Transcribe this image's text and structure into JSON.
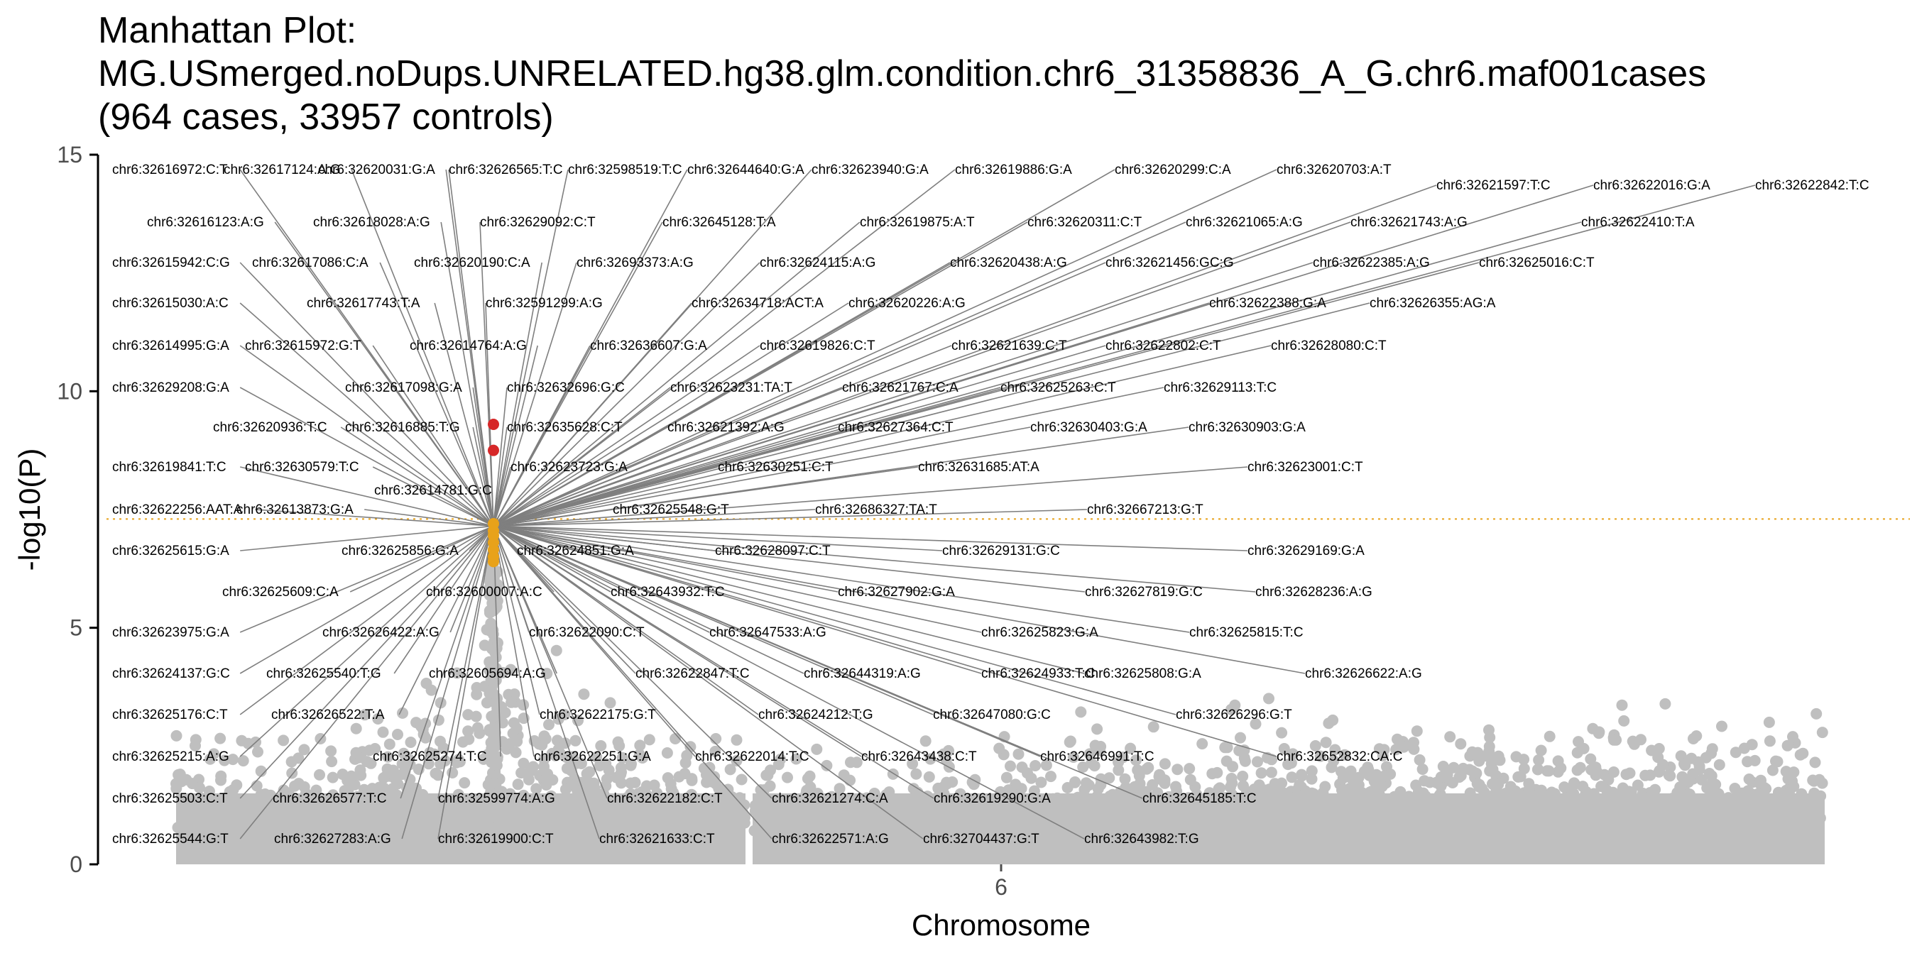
{
  "chart_data": {
    "type": "scatter",
    "title_lines": [
      "Manhattan Plot:",
      "MG.USmerged.noDups.UNRELATED.hg38.glm.condition.chr6_31358836_A_G.chr6.maf001cases",
      "(964 cases, 33957 controls)"
    ],
    "xlabel": "Chromosome",
    "ylabel": "-log10(P)",
    "x_ticks": [
      "6"
    ],
    "y_ticks": [
      0,
      5,
      10,
      15
    ],
    "ylim": [
      0,
      15
    ],
    "significance_threshold": 7.3,
    "grid": false,
    "colors": {
      "background": "#bfbfbf",
      "suggestive": "#e8a21a",
      "significant": "#d62728",
      "threshold_line": "#e8a21a",
      "leader": "#7f7f7f"
    },
    "highlight_points": [
      {
        "label": "top-1",
        "y": 9.3,
        "category": "significant"
      },
      {
        "label": "top-2",
        "y": 8.75,
        "category": "significant"
      },
      {
        "label": "cluster",
        "y": 7.2,
        "category": "suggestive"
      },
      {
        "label": "cluster",
        "y": 7.05,
        "category": "suggestive"
      },
      {
        "label": "cluster",
        "y": 6.95,
        "category": "suggestive"
      },
      {
        "label": "cluster",
        "y": 6.8,
        "category": "suggestive"
      },
      {
        "label": "cluster",
        "y": 6.65,
        "category": "suggestive"
      },
      {
        "label": "cluster",
        "y": 6.5,
        "category": "suggestive"
      },
      {
        "label": "cluster",
        "y": 6.4,
        "category": "suggestive"
      }
    ],
    "labels": [
      [
        "chr6:32616972:C:T",
        0
      ],
      [
        "chr6:32617124:A:G",
        0
      ],
      [
        "chr6:32620031:G:A",
        0
      ],
      [
        "chr6:32626565:T:C",
        0
      ],
      [
        "chr6:32598519:T:C",
        0
      ],
      [
        "chr6:32644640:G:A",
        0
      ],
      [
        "chr6:32623940:G:A",
        0
      ],
      [
        "chr6:32619886:G:A",
        0
      ],
      [
        "chr6:32620299:C:A",
        0
      ],
      [
        "chr6:32620703:A:T",
        0
      ],
      [
        "chr6:32621597:T:C",
        1
      ],
      [
        "chr6:32622016:G:A",
        1
      ],
      [
        "chr6:32622842:T:C",
        1
      ],
      [
        "chr6:32616123:A:G",
        2
      ],
      [
        "chr6:32618028:A:G",
        2
      ],
      [
        "chr6:32629092:C:T",
        2
      ],
      [
        "chr6:32645128:T:A",
        2
      ],
      [
        "chr6:32619875:A:T",
        2
      ],
      [
        "chr6:32620311:C:T",
        2
      ],
      [
        "chr6:32621065:A:G",
        2
      ],
      [
        "chr6:32621743:A:G",
        2
      ],
      [
        "chr6:32622410:T:A",
        2
      ],
      [
        "chr6:32615942:C:G",
        3
      ],
      [
        "chr6:32617086:C:A",
        3
      ],
      [
        "chr6:32620190:C:A",
        3
      ],
      [
        "chr6:32693373:A:G",
        3
      ],
      [
        "chr6:32624115:A:G",
        3
      ],
      [
        "chr6:32620438:A:G",
        3
      ],
      [
        "chr6:32621456:GC:G",
        3
      ],
      [
        "chr6:32622385:A:G",
        3
      ],
      [
        "chr6:32625016:C:T",
        3
      ],
      [
        "chr6:32615030:A:C",
        4
      ],
      [
        "chr6:32617743:T:A",
        4
      ],
      [
        "chr6:32591299:A:G",
        4
      ],
      [
        "chr6:32634718:ACT:A",
        4
      ],
      [
        "chr6:32620226:A:G",
        4
      ],
      [
        "chr6:32622388:G:A",
        4
      ],
      [
        "chr6:32626355:AG:A",
        4
      ],
      [
        "chr6:32614995:G:A",
        5
      ],
      [
        "chr6:32615972:G:T",
        5
      ],
      [
        "chr6:32614764:A:G",
        5
      ],
      [
        "chr6:32636607:G:A",
        5
      ],
      [
        "chr6:32619826:C:T",
        5
      ],
      [
        "chr6:32621639:C:T",
        5
      ],
      [
        "chr6:32622802:C:T",
        5
      ],
      [
        "chr6:32628080:C:T",
        5
      ],
      [
        "chr6:32629208:G:A",
        6
      ],
      [
        "chr6:32617098:G:A",
        6
      ],
      [
        "chr6:32632696:G:C",
        6
      ],
      [
        "chr6:32623231:TA:T",
        6
      ],
      [
        "chr6:32621767:C:A",
        6
      ],
      [
        "chr6:32625263:C:T",
        6
      ],
      [
        "chr6:32629113:T:C",
        6
      ],
      [
        "chr6:32620936:T:C",
        7
      ],
      [
        "chr6:32616885:T:G",
        7
      ],
      [
        "chr6:32635628:C:T",
        7
      ],
      [
        "chr6:32621392:A:G",
        7
      ],
      [
        "chr6:32627364:C:T",
        7
      ],
      [
        "chr6:32630403:G:A",
        7
      ],
      [
        "chr6:32630903:G:A",
        7
      ],
      [
        "chr6:32619841:T:C",
        8
      ],
      [
        "chr6:32630579:T:C",
        8
      ],
      [
        "chr6:32623723:G:A",
        8
      ],
      [
        "chr6:32630251:C:T",
        8
      ],
      [
        "chr6:32631685:AT:A",
        8
      ],
      [
        "chr6:32623001:C:T",
        8
      ],
      [
        "chr6:32614781:G:C",
        9
      ],
      [
        "chr6:32622256:AAT:A",
        10
      ],
      [
        "chr6:32613873:G:A",
        10
      ],
      [
        "chr6:32625548:G:T",
        10
      ],
      [
        "chr6:32686327:TA:T",
        10
      ],
      [
        "chr6:32667213:G:T",
        10
      ],
      [
        "chr6:32625615:G:A",
        11
      ],
      [
        "chr6:32625856:G:A",
        11
      ],
      [
        "chr6:32624851:G:A",
        11
      ],
      [
        "chr6:32628097:C:T",
        11
      ],
      [
        "chr6:32629131:G:C",
        11
      ],
      [
        "chr6:32629169:G:A",
        11
      ],
      [
        "chr6:32625609:C:A",
        12
      ],
      [
        "chr6:32600007:A:C",
        12
      ],
      [
        "chr6:32643932:T:C",
        12
      ],
      [
        "chr6:32627902:G:A",
        12
      ],
      [
        "chr6:32627819:G:C",
        12
      ],
      [
        "chr6:32628236:A:G",
        12
      ],
      [
        "chr6:32623975:G:A",
        13
      ],
      [
        "chr6:32626422:A:G",
        13
      ],
      [
        "chr6:32622090:C:T",
        13
      ],
      [
        "chr6:32647533:A:G",
        13
      ],
      [
        "chr6:32625823:G:A",
        13
      ],
      [
        "chr6:32625815:T:C",
        13
      ],
      [
        "chr6:32624137:G:C",
        14
      ],
      [
        "chr6:32625540:T:G",
        14
      ],
      [
        "chr6:32605694:A:G",
        14
      ],
      [
        "chr6:32622847:T:C",
        14
      ],
      [
        "chr6:32644319:A:G",
        14
      ],
      [
        "chr6:32624933:T:C",
        14
      ],
      [
        "chr6:32625808:G:A",
        14
      ],
      [
        "chr6:32626622:A:G",
        14
      ],
      [
        "chr6:32625176:C:T",
        15
      ],
      [
        "chr6:32626522:T:A",
        15
      ],
      [
        "chr6:32622175:G:T",
        15
      ],
      [
        "chr6:32624212:T:G",
        15
      ],
      [
        "chr6:32647080:G:C",
        15
      ],
      [
        "chr6:32626296:G:T",
        15
      ],
      [
        "chr6:32625215:A:G",
        16
      ],
      [
        "chr6:32625274:T:C",
        16
      ],
      [
        "chr6:32622251:G:A",
        16
      ],
      [
        "chr6:32622014:T:C",
        16
      ],
      [
        "chr6:32643438:C:T",
        16
      ],
      [
        "chr6:32646991:T:C",
        16
      ],
      [
        "chr6:32652832:CA:C",
        16
      ],
      [
        "chr6:32625503:C:T",
        17
      ],
      [
        "chr6:32626577:T:C",
        17
      ],
      [
        "chr6:32599774:A:G",
        17
      ],
      [
        "chr6:32622182:C:T",
        17
      ],
      [
        "chr6:32621274:C:A",
        17
      ],
      [
        "chr6:32619290:G:A",
        17
      ],
      [
        "chr6:32645185:T:C",
        17
      ],
      [
        "chr6:32625544:G:T",
        18
      ],
      [
        "chr6:32627283:A:G",
        18
      ],
      [
        "chr6:32619900:C:T",
        18
      ],
      [
        "chr6:32621633:C:T",
        18
      ],
      [
        "chr6:32622571:A:G",
        18
      ],
      [
        "chr6:32704437:G:T",
        18
      ],
      [
        "chr6:32643982:T:G",
        18
      ]
    ]
  }
}
